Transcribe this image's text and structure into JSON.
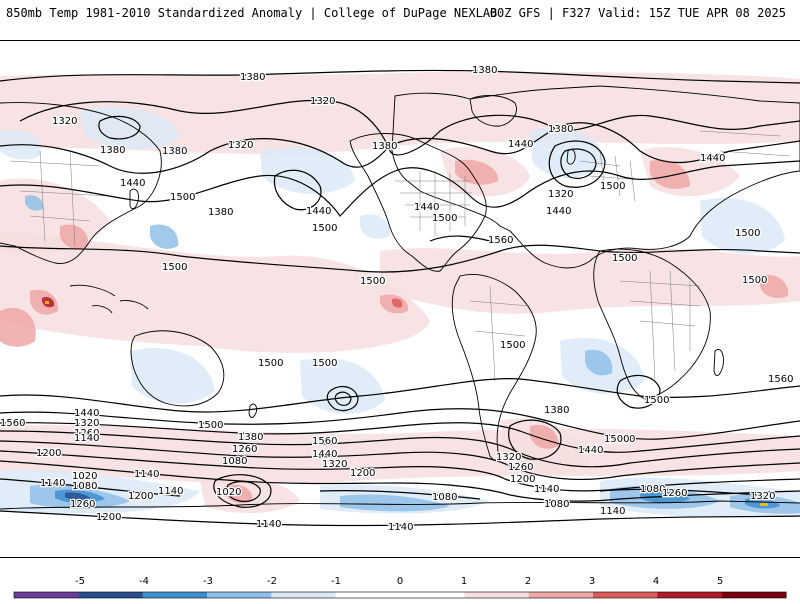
{
  "header": {
    "title_left": "850mb Temp 1981-2010 Standardized Anomaly | College of DuPage NEXLAB",
    "title_right": "00Z GFS | F327 Valid: 15Z TUE APR 08 2025"
  },
  "colors": {
    "land_fill": "#ffffff",
    "coastline": "#000000",
    "border": "#7a7a7a",
    "contour": "#000000",
    "anom_neg5": "#6a3d9a",
    "anom_neg4": "#2b4e8f",
    "anom_neg3": "#3f8fd0",
    "anom_neg2": "#8fc0e8",
    "anom_neg1": "#dbe9f6",
    "anom_zero": "#ffffff",
    "anom_pos1": "#f6dede",
    "anom_pos2": "#eea7a7",
    "anom_pos3": "#dc5a5a",
    "anom_pos4": "#b01c2a",
    "anom_pos5": "#7a0010",
    "anom_over": "#f7c218"
  },
  "colorbar": {
    "ticks": [
      "-5",
      "-4",
      "-3",
      "-2",
      "-1",
      "0",
      "1",
      "2",
      "3",
      "4",
      "5"
    ],
    "segments": [
      "anom_neg5",
      "anom_neg4",
      "anom_neg3",
      "anom_neg2",
      "anom_neg1",
      "anom_zero",
      "anom_zero",
      "anom_pos1",
      "anom_pos2",
      "anom_pos3",
      "anom_pos4",
      "anom_pos5"
    ]
  },
  "contour_labels": [
    {
      "text": "1380"
    },
    {
      "text": "1380"
    },
    {
      "text": "1320"
    },
    {
      "text": "1320"
    },
    {
      "text": "1380"
    },
    {
      "text": "1320"
    },
    {
      "text": "1380"
    },
    {
      "text": "1380"
    },
    {
      "text": "1380"
    },
    {
      "text": "1440"
    },
    {
      "text": "1500"
    },
    {
      "text": "1440"
    },
    {
      "text": "1500"
    },
    {
      "text": "1380"
    },
    {
      "text": "1440"
    },
    {
      "text": "1500"
    },
    {
      "text": "1440"
    },
    {
      "text": "1500"
    },
    {
      "text": "1560"
    },
    {
      "text": "1320"
    },
    {
      "text": "1440"
    },
    {
      "text": "1500"
    },
    {
      "text": "1440"
    },
    {
      "text": "1500"
    },
    {
      "text": "1500"
    },
    {
      "text": "1500"
    },
    {
      "text": "1500"
    },
    {
      "text": "1500"
    },
    {
      "text": "1500"
    },
    {
      "text": "1500"
    },
    {
      "text": "1500"
    },
    {
      "text": "1500"
    },
    {
      "text": "1560"
    },
    {
      "text": "1500"
    },
    {
      "text": "1560"
    },
    {
      "text": "1440"
    },
    {
      "text": "1320"
    },
    {
      "text": "1260"
    },
    {
      "text": "1140"
    },
    {
      "text": "1200"
    },
    {
      "text": "1380"
    },
    {
      "text": "1260"
    },
    {
      "text": "1080"
    },
    {
      "text": "1200"
    },
    {
      "text": "1320"
    },
    {
      "text": "1440"
    },
    {
      "text": "1560"
    },
    {
      "text": "1380"
    },
    {
      "text": "1320"
    },
    {
      "text": "1260"
    },
    {
      "text": "1200"
    },
    {
      "text": "1140"
    },
    {
      "text": "1440"
    },
    {
      "text": "1500"
    },
    {
      "text": "1020"
    },
    {
      "text": "1080"
    },
    {
      "text": "1140"
    },
    {
      "text": "1200"
    },
    {
      "text": "1260"
    },
    {
      "text": "1200"
    },
    {
      "text": "1020"
    },
    {
      "text": "1140"
    },
    {
      "text": "1140"
    },
    {
      "text": "1080"
    },
    {
      "text": "1080"
    },
    {
      "text": "1140"
    },
    {
      "text": "1080"
    },
    {
      "text": "1260"
    },
    {
      "text": "1320"
    },
    {
      "text": "1140"
    },
    {
      "text": "1140"
    }
  ]
}
